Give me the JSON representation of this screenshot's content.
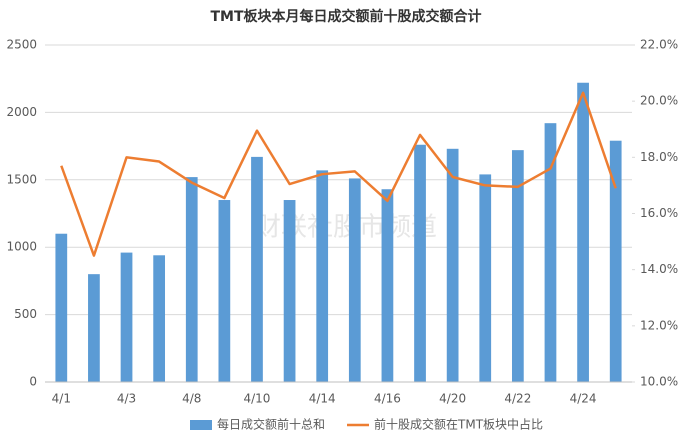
{
  "chart_data": {
    "type": "bar-line",
    "title": "TMT板块本月每日成交额前十股成交额合计",
    "watermark": "财联社股市频道",
    "categories": [
      "4/1",
      null,
      "4/3",
      null,
      "4/8",
      null,
      "4/10",
      null,
      "4/14",
      null,
      "4/16",
      null,
      "4/20",
      null,
      "4/22",
      null,
      "4/24",
      null
    ],
    "series": [
      {
        "name": "每日成交额前十总和",
        "color": "#5b9bd5",
        "type": "bar",
        "values": [
          1100,
          800,
          960,
          940,
          1520,
          1350,
          1670,
          1350,
          1570,
          1510,
          1430,
          1760,
          1730,
          1540,
          1720,
          1920,
          2220,
          1790
        ]
      },
      {
        "name": "前十股成交额在TMT板块中占比",
        "color": "#ed7d31",
        "type": "line",
        "axis": "y2",
        "values": [
          17.7,
          14.5,
          18.0,
          17.85,
          17.1,
          16.55,
          18.95,
          17.05,
          17.4,
          17.5,
          16.45,
          18.8,
          17.3,
          17.0,
          16.95,
          17.6,
          20.3,
          16.9
        ]
      }
    ],
    "ylim": [
      0,
      2500
    ],
    "yticks": [
      0,
      500,
      1000,
      1500,
      2000,
      2500
    ],
    "y2lim": [
      10,
      22
    ],
    "y2ticks": [
      {
        "value": 10,
        "label": "10.0%"
      },
      {
        "value": 12,
        "label": "12.0%"
      },
      {
        "value": 14,
        "label": "14.0%"
      },
      {
        "value": 16,
        "label": "16.0%"
      },
      {
        "value": 18,
        "label": "18.0%"
      },
      {
        "value": 20,
        "label": "20.0%"
      },
      {
        "value": 22,
        "label": "22.0%"
      }
    ],
    "grid": true,
    "legend": "bottom"
  }
}
